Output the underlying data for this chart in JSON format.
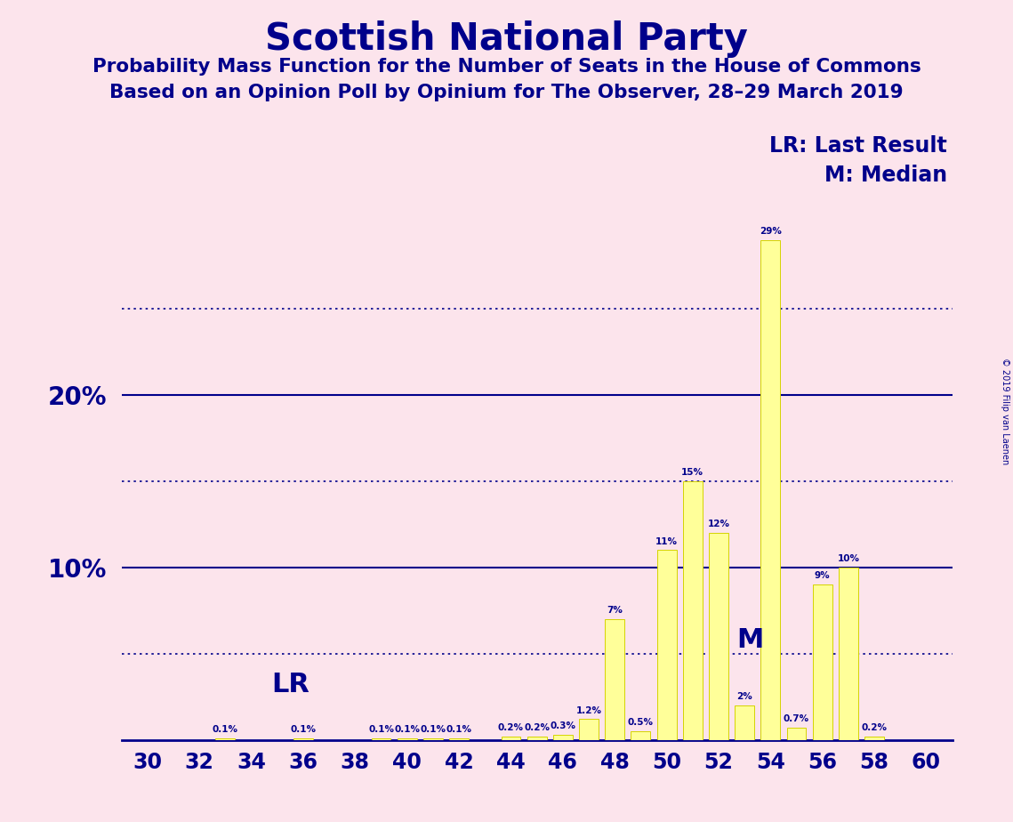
{
  "title": "Scottish National Party",
  "subtitle1": "Probability Mass Function for the Number of Seats in the House of Commons",
  "subtitle2": "Based on an Opinion Poll by Opinium for The Observer, 28–29 March 2019",
  "copyright": "© 2019 Filip van Laenen",
  "background_color": "#fce4ec",
  "bar_color": "#ffff99",
  "bar_edge_color": "#d4d400",
  "text_color": "#00008b",
  "seats": [
    30,
    31,
    32,
    33,
    34,
    35,
    36,
    37,
    38,
    39,
    40,
    41,
    42,
    43,
    44,
    45,
    46,
    47,
    48,
    49,
    50,
    51,
    52,
    53,
    54,
    55,
    56,
    57,
    58,
    59,
    60
  ],
  "probabilities": [
    0.0,
    0.0,
    0.0,
    0.1,
    0.0,
    0.0,
    0.1,
    0.0,
    0.0,
    0.1,
    0.1,
    0.1,
    0.1,
    0.0,
    0.2,
    0.2,
    0.3,
    1.2,
    7.0,
    0.5,
    11.0,
    15.0,
    12.0,
    2.0,
    29.0,
    0.7,
    9.0,
    10.0,
    0.2,
    0.0,
    0.0
  ],
  "lr_seat": 35,
  "median_seat": 53,
  "lr_label": "LR",
  "median_label": "M",
  "legend_lr": "LR: Last Result",
  "legend_m": "M: Median",
  "ylim": [
    0,
    31
  ],
  "solid_lines": [
    10,
    20
  ],
  "dotted_lines": [
    5,
    15,
    25
  ],
  "xmin": 29,
  "xmax": 61
}
